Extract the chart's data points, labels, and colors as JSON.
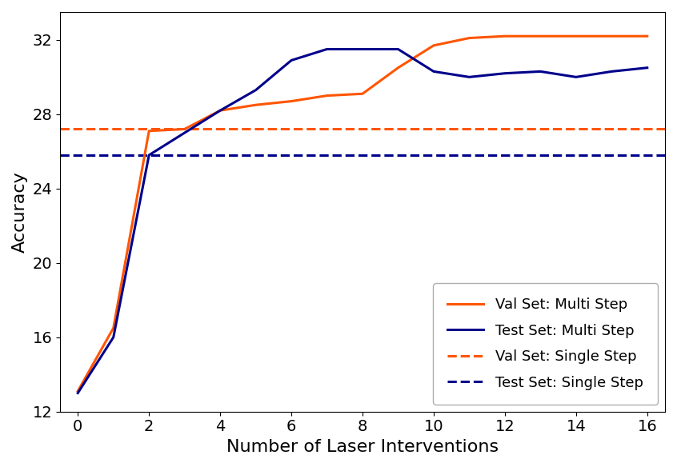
{
  "title": "",
  "xlabel": "Number of Laser Interventions",
  "ylabel": "Accuracy",
  "xlim": [
    -0.5,
    16.5
  ],
  "ylim": [
    12,
    33.5
  ],
  "yticks": [
    12,
    16,
    20,
    24,
    28,
    32
  ],
  "xticks": [
    0,
    2,
    4,
    6,
    8,
    10,
    12,
    14,
    16
  ],
  "val_multi_x": [
    0,
    1,
    2,
    3,
    4,
    5,
    6,
    7,
    8,
    9,
    10,
    11,
    12,
    13,
    14,
    15,
    16
  ],
  "val_multi_y": [
    13.1,
    16.5,
    27.1,
    27.2,
    28.2,
    28.5,
    28.7,
    29.0,
    29.1,
    30.5,
    31.7,
    32.1,
    32.2,
    32.2,
    32.2,
    32.2,
    32.2
  ],
  "test_multi_x": [
    0,
    1,
    2,
    3,
    4,
    5,
    6,
    7,
    8,
    9,
    10,
    11,
    12,
    13,
    14,
    15,
    16
  ],
  "test_multi_y": [
    13.0,
    16.0,
    25.8,
    27.0,
    28.2,
    29.3,
    30.9,
    31.5,
    31.5,
    31.5,
    30.3,
    30.0,
    30.2,
    30.3,
    30.0,
    30.3,
    30.5
  ],
  "val_single": 27.2,
  "test_single": 25.8,
  "val_color": "#FF5500",
  "test_color": "#00008B",
  "legend_loc": "lower right",
  "linewidth": 2.2,
  "fontsize": 16,
  "tick_fontsize": 14,
  "legend_fontsize": 13
}
